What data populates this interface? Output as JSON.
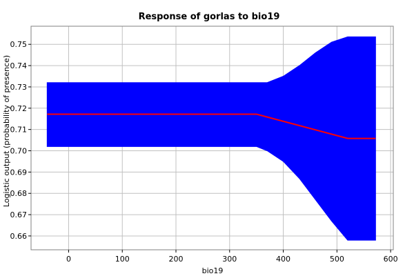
{
  "chart_data": {
    "type": "area",
    "title": "Response of gorlas to bio19",
    "xlabel": "bio19",
    "ylabel": "Logistic output (probability of presence)",
    "xlim": [
      -70,
      605
    ],
    "ylim": [
      0.6535,
      0.7585
    ],
    "x_ticks": [
      0,
      100,
      200,
      300,
      400,
      500,
      600
    ],
    "y_ticks": [
      0.66,
      0.67,
      0.68,
      0.69,
      0.7,
      0.71,
      0.72,
      0.73,
      0.74,
      0.75
    ],
    "grid": true,
    "legend": "none",
    "colors": {
      "band": "#0000ff",
      "mean": "#ff0000"
    },
    "series": [
      {
        "kind": "band",
        "x": [
          -40,
          0,
          100,
          200,
          300,
          350,
          370,
          400,
          430,
          460,
          490,
          520,
          550,
          572
        ],
        "lower": [
          0.702,
          0.702,
          0.702,
          0.702,
          0.702,
          0.702,
          0.7,
          0.695,
          0.687,
          0.677,
          0.667,
          0.658,
          0.658,
          0.658
        ],
        "upper": [
          0.732,
          0.732,
          0.732,
          0.732,
          0.732,
          0.732,
          0.732,
          0.735,
          0.74,
          0.746,
          0.751,
          0.7535,
          0.7535,
          0.7535
        ]
      },
      {
        "kind": "line",
        "x": [
          -40,
          0,
          100,
          200,
          300,
          350,
          520,
          572
        ],
        "y": [
          0.7172,
          0.7172,
          0.7172,
          0.7172,
          0.7172,
          0.7172,
          0.7058,
          0.7058
        ]
      }
    ]
  }
}
